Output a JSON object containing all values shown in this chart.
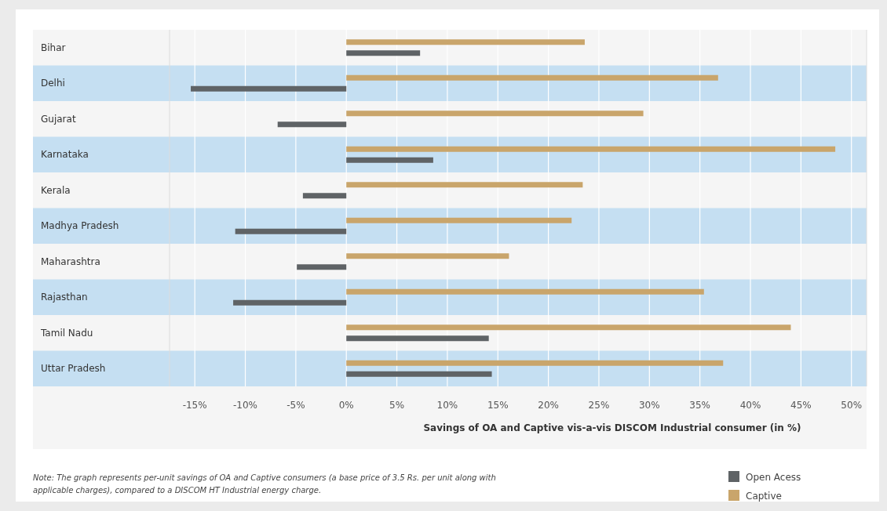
{
  "chart_data": {
    "type": "bar",
    "orientation": "horizontal",
    "xlabel": "Savings of OA and Captive vis-a-vis DISCOM Industrial consumer (in %)",
    "categories": [
      "Bihar",
      "Delhi",
      "Gujarat",
      "Karnataka",
      "Kerala",
      "Madhya Pradesh",
      "Maharashtra",
      "Rajasthan",
      "Tamil Nadu",
      "Uttar Pradesh"
    ],
    "series": [
      {
        "name": "Open Acess",
        "color": "#5f6366",
        "values": [
          7.3,
          -15.4,
          -6.8,
          8.6,
          -4.3,
          -11.0,
          -4.9,
          -11.2,
          14.1,
          14.4
        ]
      },
      {
        "name": "Captive",
        "color": "#c9a56b",
        "values": [
          23.6,
          36.8,
          29.4,
          48.4,
          23.4,
          22.3,
          16.1,
          35.4,
          44.0,
          37.3
        ]
      }
    ],
    "xlim": [
      -17.5,
      51.5
    ],
    "xticks": [
      {
        "value": -15,
        "label": "-15%"
      },
      {
        "value": -10,
        "label": "-10%"
      },
      {
        "value": -5,
        "label": "-5%"
      },
      {
        "value": 0,
        "label": "0%"
      },
      {
        "value": 5,
        "label": "5%"
      },
      {
        "value": 10,
        "label": "10%"
      },
      {
        "value": 15,
        "label": "15%"
      },
      {
        "value": 20,
        "label": "20%"
      },
      {
        "value": 25,
        "label": "25%"
      },
      {
        "value": 30,
        "label": "30%"
      },
      {
        "value": 35,
        "label": "35%"
      },
      {
        "value": 40,
        "label": "40%"
      },
      {
        "value": 45,
        "label": "45%"
      },
      {
        "value": 50,
        "label": "50%"
      }
    ],
    "grid": "x",
    "legend": "bottom right",
    "bands": [
      {
        "axis": "y",
        "from": "Delhi",
        "to": "Delhi",
        "color": "#c5dff2"
      },
      {
        "axis": "y",
        "from": "Karnataka",
        "to": "Karnataka",
        "color": "#c5dff2"
      },
      {
        "axis": "y",
        "from": "Madhya Pradesh",
        "to": "Madhya Pradesh",
        "color": "#c5dff2"
      },
      {
        "axis": "y",
        "from": "Rajasthan",
        "to": "Rajasthan",
        "color": "#c5dff2"
      },
      {
        "axis": "y",
        "from": "Uttar Pradesh",
        "to": "Uttar Pradesh",
        "color": "#c5dff2"
      }
    ],
    "annotations": [
      "Note: The graph represents per-unit savings of OA and Captive consumers (a base price of 3.5 Rs. per unit along with applicable charges), compared to a DISCOM HT Industrial energy charge."
    ]
  }
}
